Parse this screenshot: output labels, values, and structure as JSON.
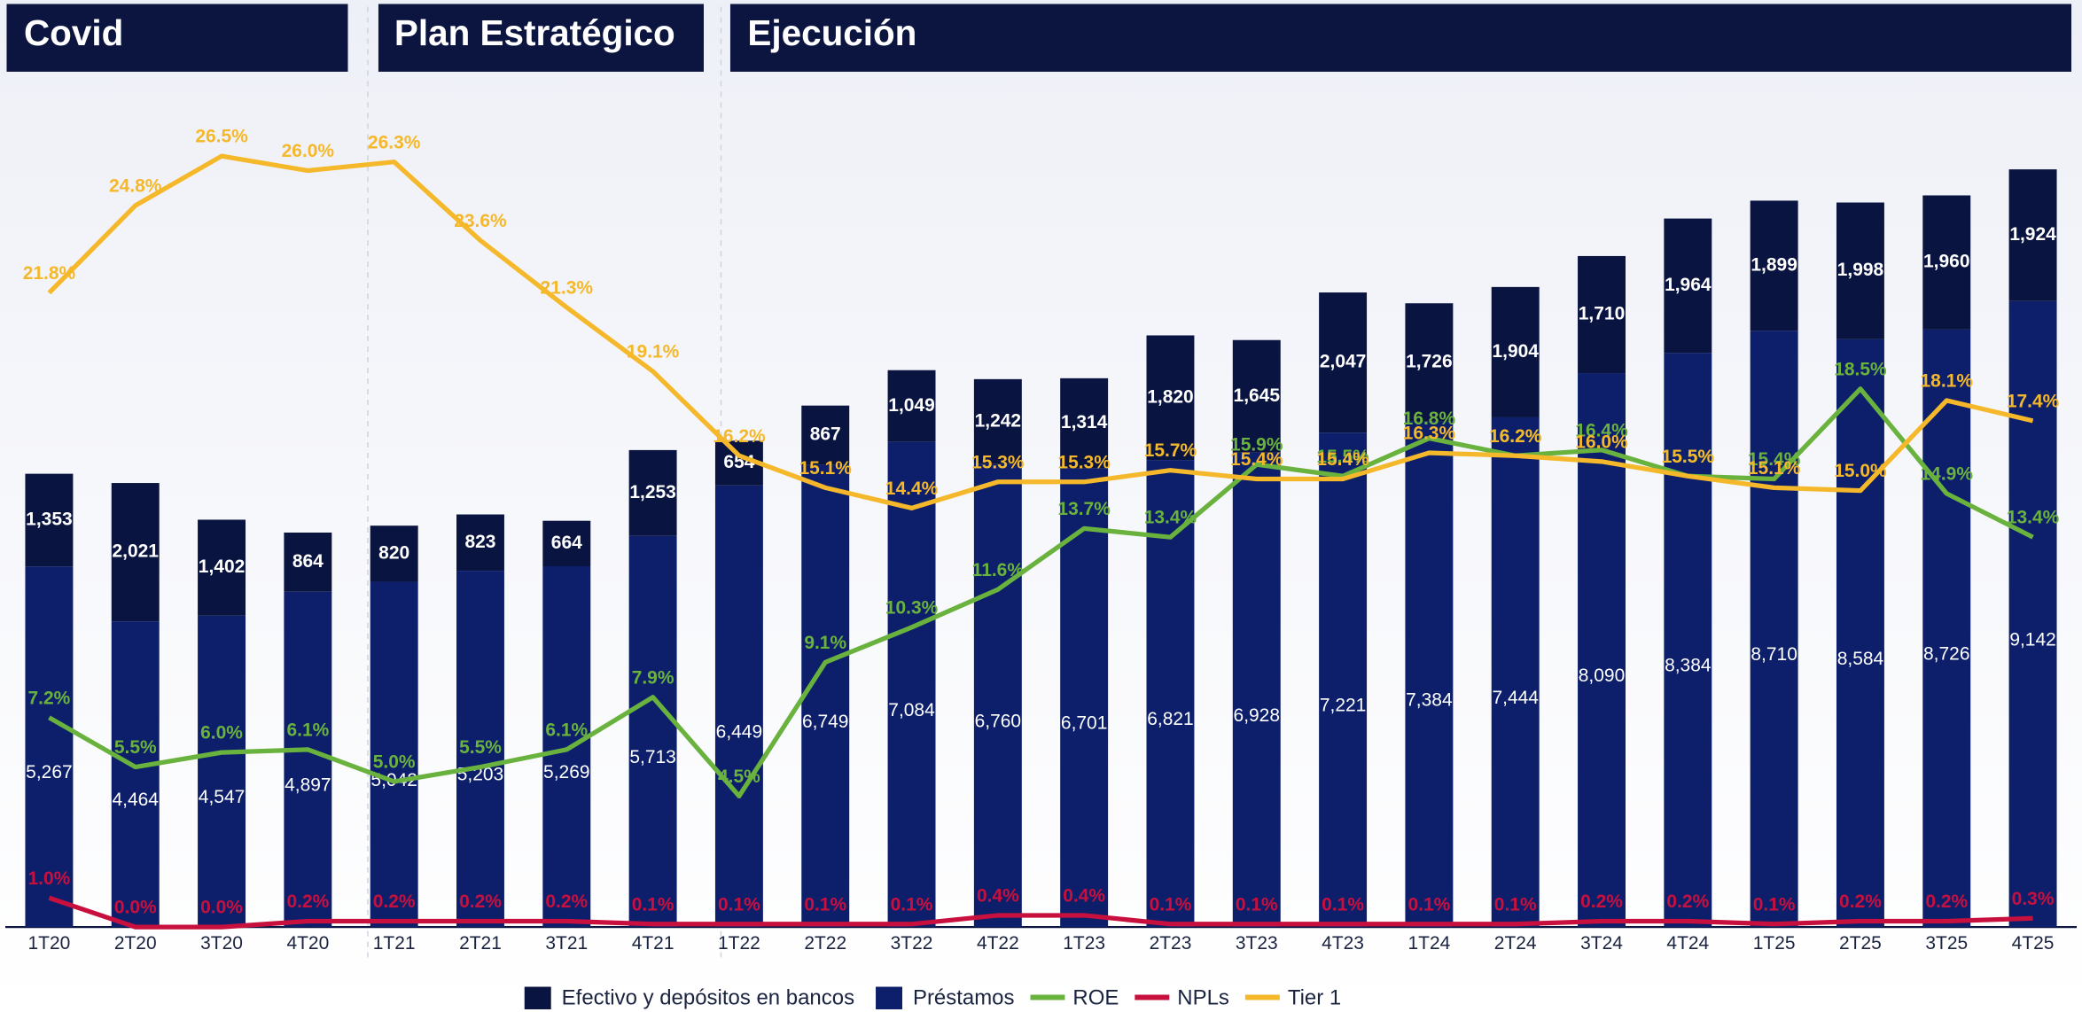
{
  "headers": [
    "Covid",
    "Plan Estratégico",
    "Ejecución"
  ],
  "chart_data": {
    "type": "bar",
    "categories": [
      "1T20",
      "2T20",
      "3T20",
      "4T20",
      "1T21",
      "2T21",
      "3T21",
      "4T21",
      "1T22",
      "2T22",
      "3T22",
      "4T22",
      "1T23",
      "2T23",
      "3T23",
      "4T23",
      "1T24",
      "2T24",
      "3T24",
      "4T24",
      "1T25",
      "2T25",
      "3T25",
      "4T25"
    ],
    "ylim": [
      0,
      11600
    ],
    "y2lim": [
      0,
      27.3
    ],
    "series": [
      {
        "name": "Efectivo y depósitos en bancos",
        "color": "#0a1440",
        "stack": true,
        "values": [
          1353,
          2021,
          1402,
          864,
          820,
          823,
          664,
          1253,
          654,
          867,
          1049,
          1242,
          1314,
          1820,
          1645,
          2047,
          1726,
          1904,
          1710,
          1964,
          1899,
          1998,
          1960,
          1924
        ],
        "value_labels": [
          "1,353",
          "2,021",
          "1,402",
          "864",
          "820",
          "823",
          "664",
          "1,253",
          "654",
          "867",
          "1,049",
          "1,242",
          "1,314",
          "1,820",
          "1,645",
          "2,047",
          "1,726",
          "1,904",
          "1,710",
          "1,964",
          "1,899",
          "1,998",
          "1,960",
          "1,924"
        ]
      },
      {
        "name": "Préstamos",
        "color": "#0d1f6b",
        "stack": true,
        "values": [
          5267,
          4464,
          4547,
          4897,
          5042,
          5203,
          5269,
          5713,
          6449,
          6749,
          7084,
          6760,
          6701,
          6821,
          6928,
          7221,
          7384,
          7444,
          8090,
          8384,
          8710,
          8584,
          8726,
          9142
        ],
        "value_labels": [
          "5,267",
          "4,464",
          "4,547",
          "4,897",
          "5,042",
          "5,203",
          "5,269",
          "5,713",
          "6,449",
          "6,749",
          "7,084",
          "6,760",
          "6,701",
          "6,821",
          "6,928",
          "7,221",
          "7,384",
          "7,444",
          "8,090",
          "8,384",
          "8,710",
          "8,584",
          "8,726",
          "9,142"
        ]
      },
      {
        "name": "ROE",
        "color": "#6ab23e",
        "type": "line",
        "axis": "y2",
        "values": [
          7.2,
          5.5,
          6.0,
          6.1,
          5.0,
          5.5,
          6.1,
          7.9,
          4.5,
          9.1,
          10.3,
          11.6,
          13.7,
          13.4,
          15.9,
          15.5,
          16.8,
          16.2,
          16.4,
          15.5,
          15.4,
          18.5,
          14.9,
          13.4
        ],
        "value_labels": [
          "7.2%",
          "5.5%",
          "6.0%",
          "6.1%",
          "5.0%",
          "5.5%",
          "6.1%",
          "7.9%",
          "4.5%",
          "9.1%",
          "10.3%",
          "11.6%",
          "13.7%",
          "13.4%",
          "15.9%",
          "15.5%",
          "16.8%",
          "16.2%",
          "16.4%",
          "15.5%",
          "15.4%",
          "18.5%",
          "14.9%",
          "13.4%"
        ]
      },
      {
        "name": "NPLs",
        "color": "#c8103e",
        "type": "line",
        "axis": "y2",
        "values": [
          1.0,
          0.0,
          0.0,
          0.2,
          0.2,
          0.2,
          0.2,
          0.1,
          0.1,
          0.1,
          0.1,
          0.4,
          0.4,
          0.1,
          0.1,
          0.1,
          0.1,
          0.1,
          0.2,
          0.2,
          0.1,
          0.2,
          0.2,
          0.3
        ],
        "value_labels": [
          "1.0%",
          "0.0%",
          "0.0%",
          "0.2%",
          "0.2%",
          "0.2%",
          "0.2%",
          "0.1%",
          "0.1%",
          "0.1%",
          "0.1%",
          "0.4%",
          "0.4%",
          "0.1%",
          "0.1%",
          "0.1%",
          "0.1%",
          "0.1%",
          "0.2%",
          "0.2%",
          "0.1%",
          "0.2%",
          "0.2%",
          "0.3%"
        ]
      },
      {
        "name": "Tier 1",
        "color": "#f5b82a",
        "type": "line",
        "axis": "y2",
        "values": [
          21.8,
          24.8,
          26.5,
          26.0,
          26.3,
          23.6,
          21.3,
          19.1,
          16.2,
          15.1,
          14.4,
          15.3,
          15.3,
          15.7,
          15.4,
          15.4,
          16.3,
          16.2,
          16.0,
          15.5,
          15.1,
          15.0,
          18.1,
          17.4
        ],
        "value_labels": [
          "21.8%",
          "24.8%",
          "26.5%",
          "26.0%",
          "26.3%",
          "23.6%",
          "21.3%",
          "19.1%",
          "16.2%",
          "15.1%",
          "14.4%",
          "15.3%",
          "15.3%",
          "15.7%",
          "15.4%",
          "15.4%",
          "16.3%",
          "16.2%",
          "16.0%",
          "15.5%",
          "15.1%",
          "15.0%",
          "18.1%",
          "17.4%"
        ]
      }
    ]
  }
}
